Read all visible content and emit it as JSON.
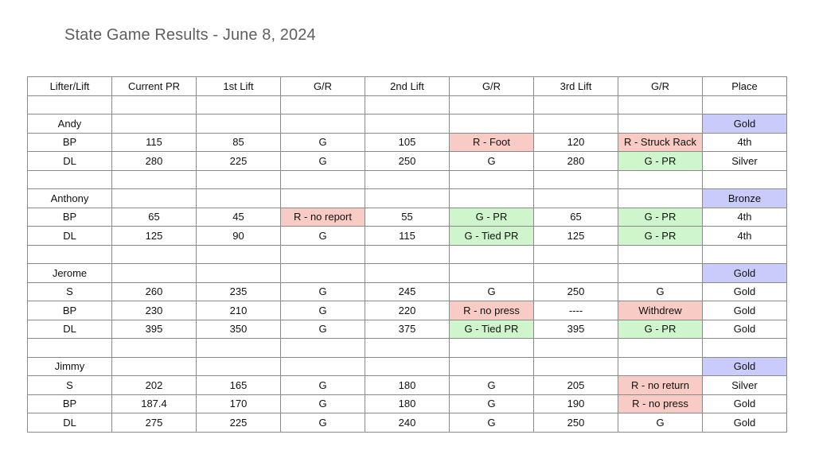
{
  "title": "State Game Results - June 8, 2024",
  "colors": {
    "red": "#f8cbc4",
    "green": "#cff5cc",
    "blue": "#c9cbfa"
  },
  "headers": [
    "Lifter/Lift",
    "Current PR",
    "1st Lift",
    "G/R",
    "2nd Lift",
    "G/R",
    "3rd Lift",
    "G/R",
    "Place"
  ],
  "rows": [
    {
      "cells": [
        "",
        "",
        "",
        "",
        "",
        "",
        "",
        "",
        ""
      ],
      "colors": []
    },
    {
      "cells": [
        "Andy",
        "",
        "",
        "",
        "",
        "",
        "",
        "",
        "Gold"
      ],
      "colors": [
        "",
        "",
        "",
        "",
        "",
        "",
        "",
        "",
        "blue"
      ]
    },
    {
      "cells": [
        "BP",
        "115",
        "85",
        "G",
        "105",
        "R - Foot",
        "120",
        "R - Struck Rack",
        "4th"
      ],
      "colors": [
        "",
        "",
        "",
        "",
        "",
        "red",
        "",
        "red",
        ""
      ]
    },
    {
      "cells": [
        "DL",
        "280",
        "225",
        "G",
        "250",
        "G",
        "280",
        "G - PR",
        "Silver"
      ],
      "colors": [
        "",
        "",
        "",
        "",
        "",
        "",
        "",
        "green",
        ""
      ]
    },
    {
      "cells": [
        "",
        "",
        "",
        "",
        "",
        "",
        "",
        "",
        ""
      ],
      "colors": []
    },
    {
      "cells": [
        "Anthony",
        "",
        "",
        "",
        "",
        "",
        "",
        "",
        "Bronze"
      ],
      "colors": [
        "",
        "",
        "",
        "",
        "",
        "",
        "",
        "",
        "blue"
      ]
    },
    {
      "cells": [
        "BP",
        "65",
        "45",
        "R - no report",
        "55",
        "G - PR",
        "65",
        "G - PR",
        "4th"
      ],
      "colors": [
        "",
        "",
        "",
        "red",
        "",
        "green",
        "",
        "green",
        ""
      ]
    },
    {
      "cells": [
        "DL",
        "125",
        "90",
        "G",
        "115",
        "G -  Tied PR",
        "125",
        "G - PR",
        "4th"
      ],
      "colors": [
        "",
        "",
        "",
        "",
        "",
        "green",
        "",
        "green",
        ""
      ]
    },
    {
      "cells": [
        "",
        "",
        "",
        "",
        "",
        "",
        "",
        "",
        ""
      ],
      "colors": []
    },
    {
      "cells": [
        "Jerome",
        "",
        "",
        "",
        "",
        "",
        "",
        "",
        "Gold"
      ],
      "colors": [
        "",
        "",
        "",
        "",
        "",
        "",
        "",
        "",
        "blue"
      ]
    },
    {
      "cells": [
        "S",
        "260",
        "235",
        "G",
        "245",
        "G",
        "250",
        "G",
        "Gold"
      ],
      "colors": []
    },
    {
      "cells": [
        "BP",
        "230",
        "210",
        "G",
        "220",
        "R - no press",
        "----",
        "Withdrew",
        "Gold"
      ],
      "colors": [
        "",
        "",
        "",
        "",
        "",
        "red",
        "",
        "red",
        ""
      ]
    },
    {
      "cells": [
        "DL",
        "395",
        "350",
        "G",
        "375",
        "G - Tied PR",
        "395",
        "G - PR",
        "Gold"
      ],
      "colors": [
        "",
        "",
        "",
        "",
        "",
        "green",
        "",
        "green",
        ""
      ]
    },
    {
      "cells": [
        "",
        "",
        "",
        "",
        "",
        "",
        "",
        "",
        ""
      ],
      "colors": []
    },
    {
      "cells": [
        "Jimmy",
        "",
        "",
        "",
        "",
        "",
        "",
        "",
        "Gold"
      ],
      "colors": [
        "",
        "",
        "",
        "",
        "",
        "",
        "",
        "",
        "blue"
      ]
    },
    {
      "cells": [
        "S",
        "202",
        "165",
        "G",
        "180",
        "G",
        "205",
        "R - no return",
        "Silver"
      ],
      "colors": [
        "",
        "",
        "",
        "",
        "",
        "",
        "",
        "red",
        ""
      ]
    },
    {
      "cells": [
        "BP",
        "187.4",
        "170",
        "G",
        "180",
        "G",
        "190",
        "R - no press",
        "Gold"
      ],
      "colors": [
        "",
        "",
        "",
        "",
        "",
        "",
        "",
        "red",
        ""
      ]
    },
    {
      "cells": [
        "DL",
        "275",
        "225",
        "G",
        "240",
        "G",
        "250",
        "G",
        "Gold"
      ],
      "colors": []
    }
  ]
}
